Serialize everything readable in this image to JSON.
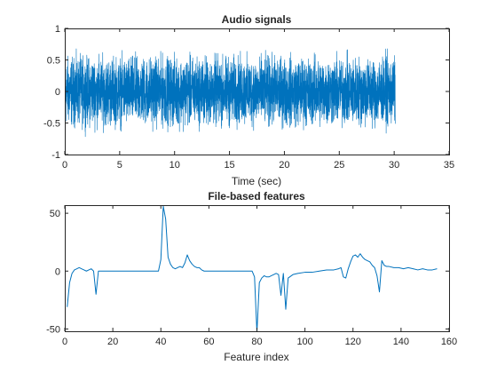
{
  "chart_data": [
    {
      "type": "line",
      "title": "Audio signals",
      "xlabel": "Time (sec)",
      "ylabel": "",
      "xlim": [
        0,
        35
      ],
      "ylim": [
        -1,
        1
      ],
      "x_ticks": [
        0,
        5,
        10,
        15,
        20,
        25,
        30,
        35
      ],
      "y_ticks": [
        -1,
        -0.5,
        0,
        0.5,
        1
      ],
      "grid": false,
      "line_color": "#0072BD",
      "series": [
        {
          "description_of_data": "dense noise-like waveform",
          "x_start": 0,
          "x_end": 30.1,
          "envelope_upper": 0.72,
          "envelope_lower": -0.72,
          "peak_min": -0.75
        }
      ]
    },
    {
      "type": "line",
      "title": "File-based features",
      "xlabel": "Feature index",
      "ylabel": "",
      "xlim": [
        0,
        160
      ],
      "ylim": [
        -52,
        57
      ],
      "x_ticks": [
        0,
        20,
        40,
        60,
        80,
        100,
        120,
        140,
        160
      ],
      "y_ticks": [
        -50,
        0,
        50
      ],
      "grid": false,
      "line_color": "#0072BD",
      "series": [
        {
          "x": [
            1,
            2,
            3,
            4,
            5,
            6,
            7,
            8,
            9,
            10,
            11,
            12,
            13,
            14,
            15,
            20,
            25,
            30,
            35,
            39,
            40,
            41,
            42,
            43,
            44,
            45,
            46,
            47,
            48,
            49,
            50,
            51,
            52,
            53,
            54,
            55,
            56,
            57,
            58,
            60,
            64,
            68,
            72,
            76,
            78,
            79,
            80,
            81,
            82,
            83,
            84,
            85,
            86,
            87,
            88,
            89,
            90,
            91,
            92,
            93,
            95,
            97,
            100,
            103,
            106,
            109,
            112,
            114,
            115,
            116,
            117,
            118,
            119,
            120,
            121,
            122,
            123,
            124,
            125,
            126,
            127,
            128,
            129,
            130,
            131,
            132,
            133,
            134,
            135,
            137,
            139,
            141,
            143,
            145,
            147,
            149,
            151,
            153,
            155
          ],
          "y": [
            -31,
            -10,
            -2,
            1,
            2,
            3,
            2,
            1,
            0,
            1,
            2,
            0,
            -20,
            0,
            0,
            0,
            0,
            0,
            0,
            0,
            10,
            56,
            45,
            12,
            6,
            3,
            2,
            3,
            4,
            3,
            7,
            14,
            9,
            6,
            4,
            3,
            3,
            1,
            0,
            0,
            0,
            0,
            0,
            0,
            0,
            -5,
            -53,
            -10,
            -6,
            -4,
            -5,
            -5,
            -4,
            -3,
            -2,
            -3,
            -21,
            -2,
            -33,
            -6,
            -3,
            -2,
            -1,
            -1,
            0,
            1,
            1,
            2,
            3,
            -5,
            -6,
            2,
            8,
            13,
            14,
            12,
            15,
            12,
            10,
            9,
            8,
            5,
            3,
            -4,
            -18,
            9,
            5,
            4,
            4,
            3,
            3,
            2,
            3,
            2,
            1,
            2,
            1,
            1,
            2
          ]
        }
      ]
    }
  ]
}
